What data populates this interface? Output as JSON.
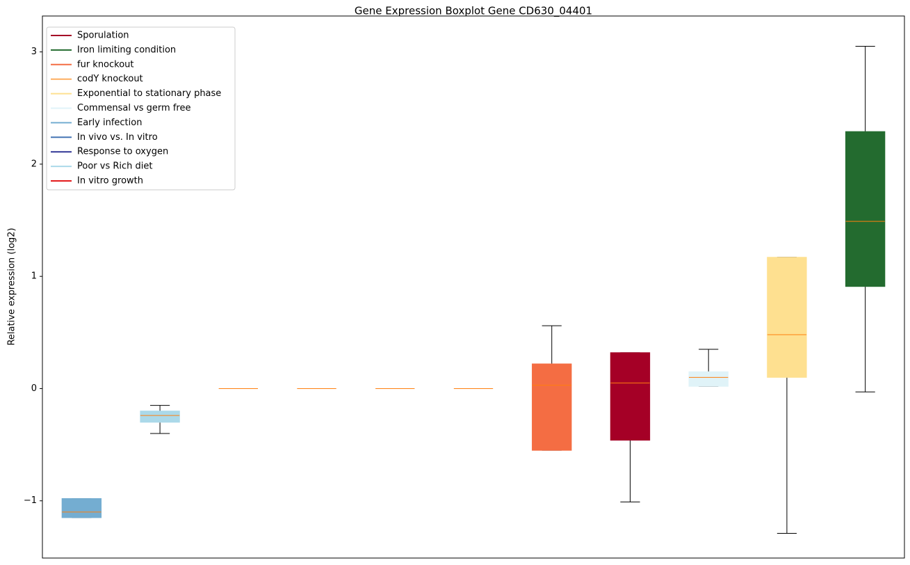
{
  "chart_data": {
    "type": "boxplot",
    "title": "Gene Expression Boxplot Gene CD630_04401",
    "y_label": "Relative expression (log2)",
    "ylim": [
      -1.51,
      3.32
    ],
    "yticks": [
      {
        "value": -1,
        "label": "−1"
      },
      0,
      1,
      2,
      3
    ],
    "median_color": "#ff7f0e",
    "legend_position": "upper left",
    "series": [
      {
        "name": "Sporulation",
        "color": "#a50026"
      },
      {
        "name": "Iron limiting condition",
        "color": "#236b2f"
      },
      {
        "name": "fur knockout",
        "color": "#f46d43"
      },
      {
        "name": "codY knockout",
        "color": "#fdae61"
      },
      {
        "name": "Exponential to stationary phase",
        "color": "#fee090"
      },
      {
        "name": "Commensal vs germ free",
        "color": "#e0f3f8"
      },
      {
        "name": "Early infection",
        "color": "#74add1"
      },
      {
        "name": "In vivo vs. In vitro",
        "color": "#4575b4"
      },
      {
        "name": "Response to oxygen",
        "color": "#313695"
      },
      {
        "name": "Poor vs Rich diet",
        "color": "#abd9e9"
      },
      {
        "name": "In vitro growth",
        "color": "#e31a1c"
      }
    ],
    "boxes": [
      {
        "color": "#74add1",
        "whislo": -1.15,
        "q1": -1.15,
        "med": -1.1,
        "q3": -0.98,
        "whishi": -0.98
      },
      {
        "color": "#abd9e9",
        "whislo": -0.4,
        "q1": -0.3,
        "med": -0.24,
        "q3": -0.2,
        "whishi": -0.15
      },
      {
        "color": "#fdae61",
        "whislo": 0,
        "q1": 0,
        "med": 0,
        "q3": 0,
        "whishi": 0
      },
      {
        "color": "#4575b4",
        "whislo": 0,
        "q1": 0,
        "med": 0,
        "q3": 0,
        "whishi": 0
      },
      {
        "color": "#313695",
        "whislo": 0,
        "q1": 0,
        "med": 0,
        "q3": 0,
        "whishi": 0
      },
      {
        "color": "#e31a1c",
        "whislo": 0,
        "q1": 0,
        "med": 0,
        "q3": 0,
        "whishi": 0
      },
      {
        "color": "#f46d43",
        "whislo": -0.55,
        "q1": -0.55,
        "med": 0.03,
        "q3": 0.22,
        "whishi": 0.56
      },
      {
        "color": "#a50026",
        "whislo": -1.01,
        "q1": -0.46,
        "med": 0.05,
        "q3": 0.32,
        "whishi": 0.32
      },
      {
        "color": "#e0f3f8",
        "whislo": 0.02,
        "q1": 0.02,
        "med": 0.1,
        "q3": 0.15,
        "whishi": 0.35
      },
      {
        "color": "#fee090",
        "whislo": -1.29,
        "q1": 0.1,
        "med": 0.48,
        "q3": 1.17,
        "whishi": 1.17
      },
      {
        "color": "#236b2f",
        "whislo": -0.03,
        "q1": 0.91,
        "med": 1.49,
        "q3": 2.29,
        "whishi": 3.05
      }
    ]
  }
}
